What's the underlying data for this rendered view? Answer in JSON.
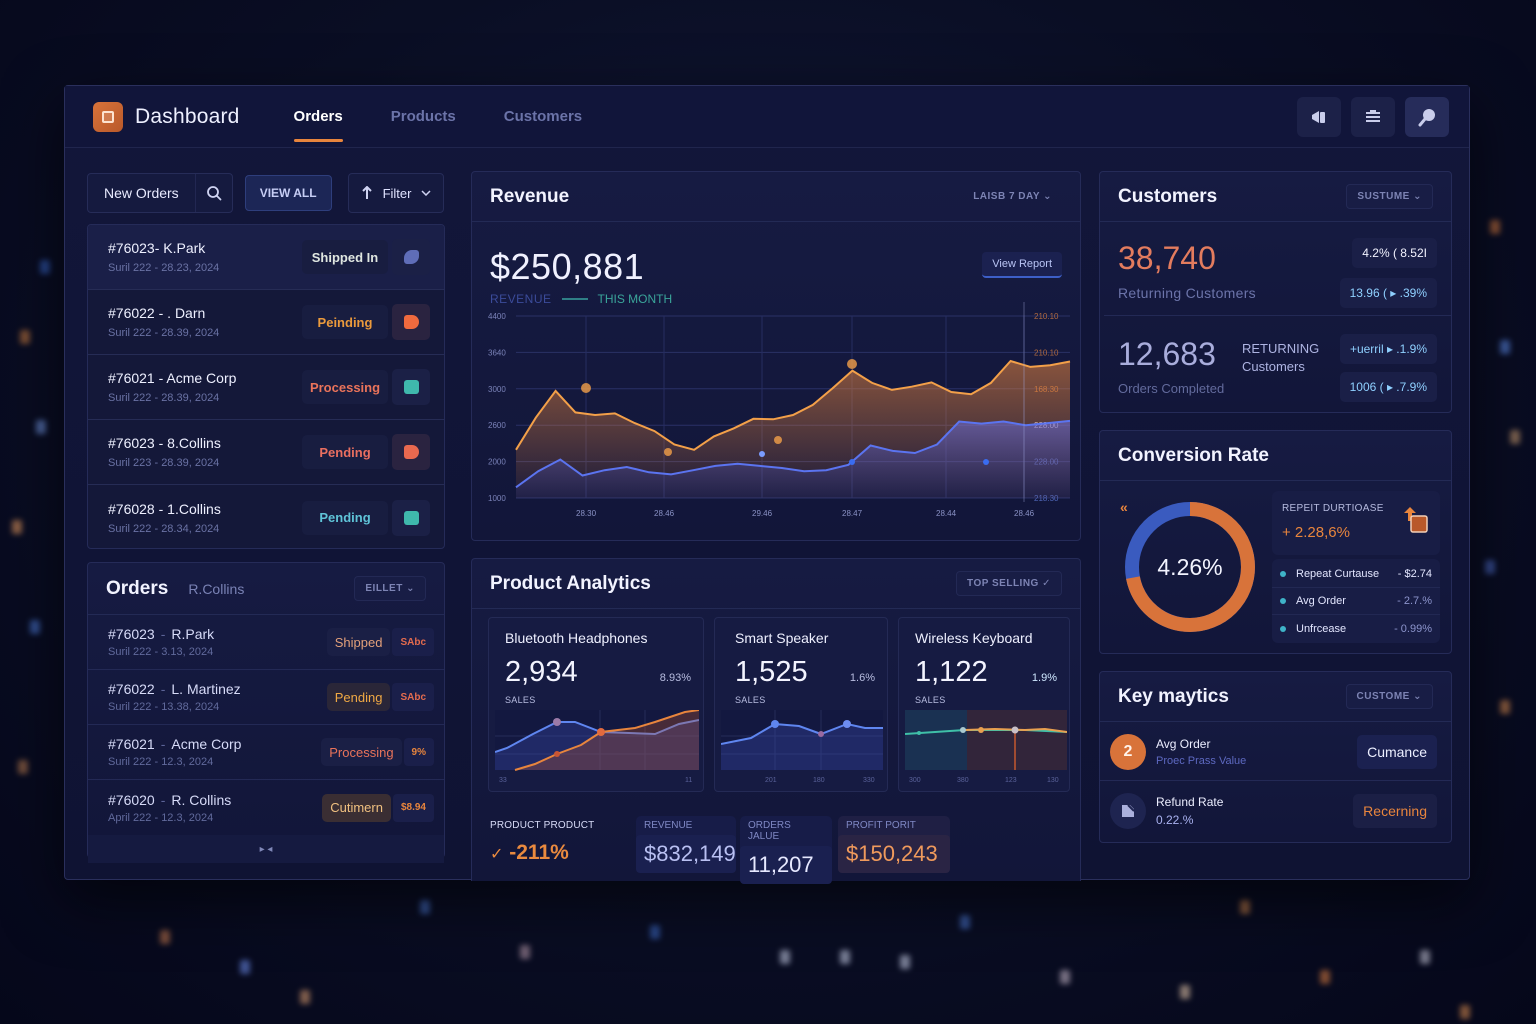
{
  "header": {
    "title": "Dashboard",
    "tabs": [
      {
        "label": "Orders",
        "active": true
      },
      {
        "label": "Products",
        "active": false
      },
      {
        "label": "Customers",
        "active": false
      }
    ],
    "actions": [
      "megaphone-icon",
      "inbox-icon",
      "search-key-icon"
    ]
  },
  "colors": {
    "accent": "#e8853d",
    "blue": "#4f6fe0",
    "teal": "#3fb3c8",
    "background": "#0f1333",
    "card": "#161b42"
  },
  "new_orders": {
    "label": "New Orders",
    "view_all": "VIEW ALL",
    "filter": "Filter",
    "rows": [
      {
        "id": "#76023- K.Park",
        "date": "Suril 222 - 28.23, 2024",
        "status": "Shipped In",
        "status_color": "#dfe6e0",
        "icon_color": "#5f6db8"
      },
      {
        "id": "#76022 - . Darn",
        "date": "Suril 222 - 28.39, 2024",
        "status": "Peinding",
        "status_color": "#eb9a3c",
        "icon_color": "#f06a3e"
      },
      {
        "id": "#76021 - Acme Corp",
        "date": "Suril 222 - 28.39, 2024",
        "status": "Processing",
        "status_color": "#e9735a",
        "icon_color": "#3fb8ac"
      },
      {
        "id": "#76023 - 8.Collins",
        "date": "Suril 223 - 28.39, 2024",
        "status": "Pending",
        "status_color": "#ea6f60",
        "icon_color": "#e9694f"
      },
      {
        "id": "#76028 - 1.Collins",
        "date": "Suril 222 - 28.34, 2024",
        "status": "Pending",
        "status_color": "#5fc4d8",
        "icon_color": "#3fb8ac"
      }
    ]
  },
  "orders": {
    "title": "Orders",
    "subtitle": "R.Collins",
    "select": "EILLET",
    "rows": [
      {
        "num": "#76023",
        "name": "R.Park",
        "date": "Suril 222 - 3.13, 2024",
        "status": "Shipped",
        "status_color": "#e3a07a",
        "tag": "SAbc",
        "tag_color": "#e36b4e"
      },
      {
        "num": "#76022",
        "name": "L. Martinez",
        "date": "Suril 222 - 13.38, 2024",
        "status": "Pending",
        "status_color": "#f0a944",
        "tag": "SAbc",
        "tag_color": "#e36b4e"
      },
      {
        "num": "#76021",
        "name": "Acme Corp",
        "date": "Suril 222 - 12.3, 2024",
        "status": "Processing",
        "status_color": "#e9735a",
        "tag": "9%",
        "tag_color": "#e8853d"
      },
      {
        "num": "#76020",
        "name": "R. Collins",
        "date": "April 222 - 12.3, 2024",
        "status": "Cutimern",
        "status_color": "#f0c080",
        "tag": "$8.94",
        "tag_color": "#e8853d"
      }
    ],
    "pager": "▸ ◂"
  },
  "revenue": {
    "title": "Revenue",
    "range_select": "LAISB  7 DAY",
    "amount": "$250,881",
    "view_report": "View Report",
    "legend_revenue": "REVENUE",
    "legend_this_month": "THIS MONTH"
  },
  "chart_data": {
    "type": "area",
    "title": "Revenue",
    "xlabel": "",
    "ylabel": "",
    "x": [
      "28.30",
      "28.46",
      "29.46",
      "28.47",
      "28.44",
      "28.46"
    ],
    "y_ticks_left": [
      4400,
      3640,
      3000,
      2600,
      2000,
      1000
    ],
    "y_ticks_right": [
      "210.10",
      "210.10",
      "168.30",
      "228.00",
      "228.00",
      "218.30"
    ],
    "ylim": [
      1000,
      4400
    ],
    "grid": true,
    "series": [
      {
        "name": "Revenue",
        "color": "#e8853d",
        "values": [
          1900,
          2500,
          3000,
          2600,
          2550,
          2580,
          2400,
          2250,
          2000,
          1900,
          2150,
          2300,
          2480,
          2470,
          2550,
          2740,
          3050,
          3380,
          3150,
          3020,
          3080,
          3160,
          2980,
          2940,
          3150,
          3560,
          3450,
          3480,
          3550
        ]
      },
      {
        "name": "This Month",
        "color": "#5b6fe6",
        "values": [
          1200,
          1500,
          1720,
          1420,
          1520,
          1580,
          1480,
          1440,
          1520,
          1600,
          1640,
          1600,
          1560,
          1500,
          1520,
          1620,
          1980,
          1880,
          1840,
          2000,
          2430,
          2390,
          2430,
          2360,
          2400,
          2440
        ]
      }
    ]
  },
  "product_analytics": {
    "title": "Product Analytics",
    "select": "TOP SELLING",
    "products": [
      {
        "name": "Bluetooth Headphones",
        "value": "2,934",
        "pct": "8.93%",
        "label": "SALES",
        "ticks": [
          "33",
          "0",
          "11"
        ]
      },
      {
        "name": "Smart Speaker",
        "value": "1,525",
        "pct": "1.6%",
        "label": "SALES",
        "ticks": [
          "201",
          "180",
          "330"
        ]
      },
      {
        "name": "Wireless Keyboard",
        "value": "1,122",
        "pct": "1.9%",
        "label": "SALES",
        "ticks": [
          "300",
          "380",
          "123",
          "130"
        ]
      }
    ],
    "stats": {
      "first_label": "PRODUCT PRODUCT",
      "first_value": "-211%",
      "revenue_label": "REVENUE",
      "revenue_value": "$832,149",
      "orders_label": "ORDERS JALUE",
      "orders_value": "11,207",
      "profit_label": "PROFIT PORIT",
      "profit_value": "$150,243"
    }
  },
  "customers": {
    "title": "Customers",
    "select": "SUSTUME",
    "returning_value": "38,740",
    "returning_label": "Returning Customers",
    "chip1": "4.2% ( 8.52I",
    "chip2": "13.96 ( ▸ .39%",
    "orders_value": "12,683",
    "orders_label": "Orders Completed",
    "returning_tag_1": "RETURNING",
    "returning_tag_2": "Customers",
    "chip3": "+uerril ▸ .1.9%",
    "chip4": "1006 ( ▸ .7.9%"
  },
  "conversion": {
    "title": "Conversion Rate",
    "value": "4.26%",
    "percent": 72,
    "repeat_label": "REPEIT DURTIOASE",
    "repeat_value": "+ 2.28,6%",
    "rows": [
      {
        "label": "Repeat Curtause",
        "value": "- $2.74"
      },
      {
        "label": "Avg Order",
        "value": "- 2.7.%"
      },
      {
        "label": "Unfrcease",
        "value": "- 0.99%"
      }
    ]
  },
  "key_metrics": {
    "title": "Key maytics",
    "select": "CUSTOME",
    "rows": [
      {
        "avatar": "2",
        "title": "Avg Order",
        "subtitle": "Proec Prass Value",
        "button": "Cumance"
      },
      {
        "avatar": "",
        "title": "Refund Rate",
        "subtitle": "0.22.%",
        "button": "Recerning"
      }
    ]
  }
}
